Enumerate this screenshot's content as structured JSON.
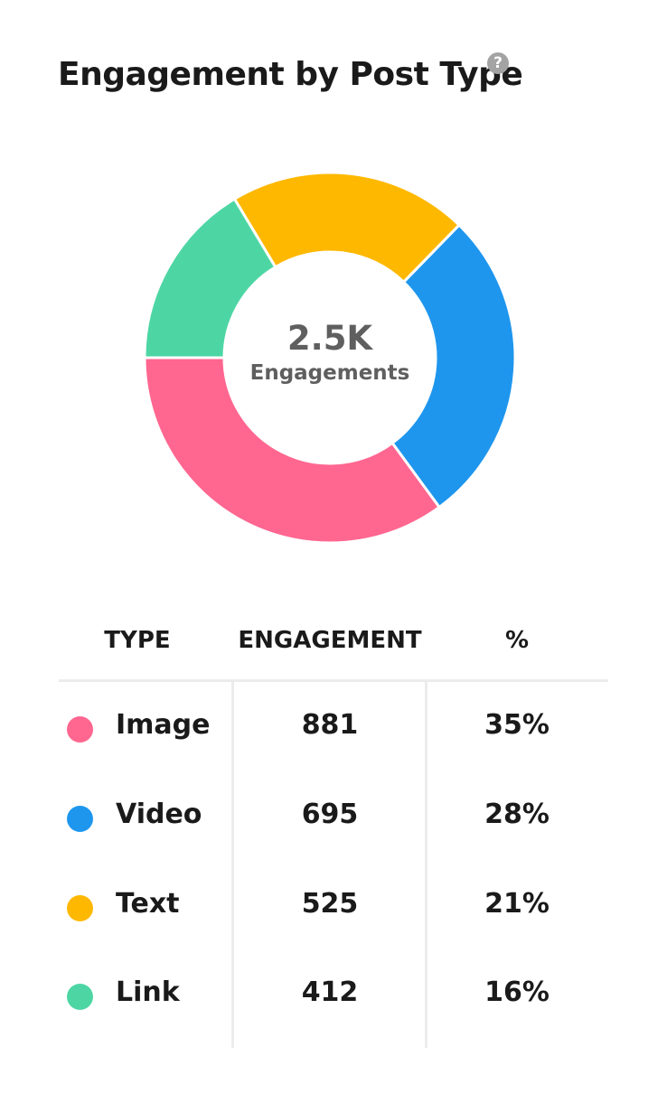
{
  "header": {
    "title": "Engagement by Post Type",
    "help_icon": "question-circle-icon",
    "help_glyph": "?"
  },
  "chart_data": {
    "type": "pie",
    "donut": true,
    "title": "Engagement by Post Type",
    "center_value": "2.5K",
    "center_label": "Engagements",
    "start_angle_deg": 180,
    "direction": "counterclockwise",
    "slices": [
      {
        "label": "Image",
        "value": 881,
        "percent": "35%",
        "color": "#ff6690"
      },
      {
        "label": "Video",
        "value": 695,
        "percent": "28%",
        "color": "#1e96ee"
      },
      {
        "label": "Text",
        "value": 525,
        "percent": "21%",
        "color": "#ffb800"
      },
      {
        "label": "Link",
        "value": 412,
        "percent": "16%",
        "color": "#4dd6a4"
      }
    ]
  },
  "table": {
    "headers": [
      "TYPE",
      "ENGAGEMENT",
      "%"
    ]
  }
}
